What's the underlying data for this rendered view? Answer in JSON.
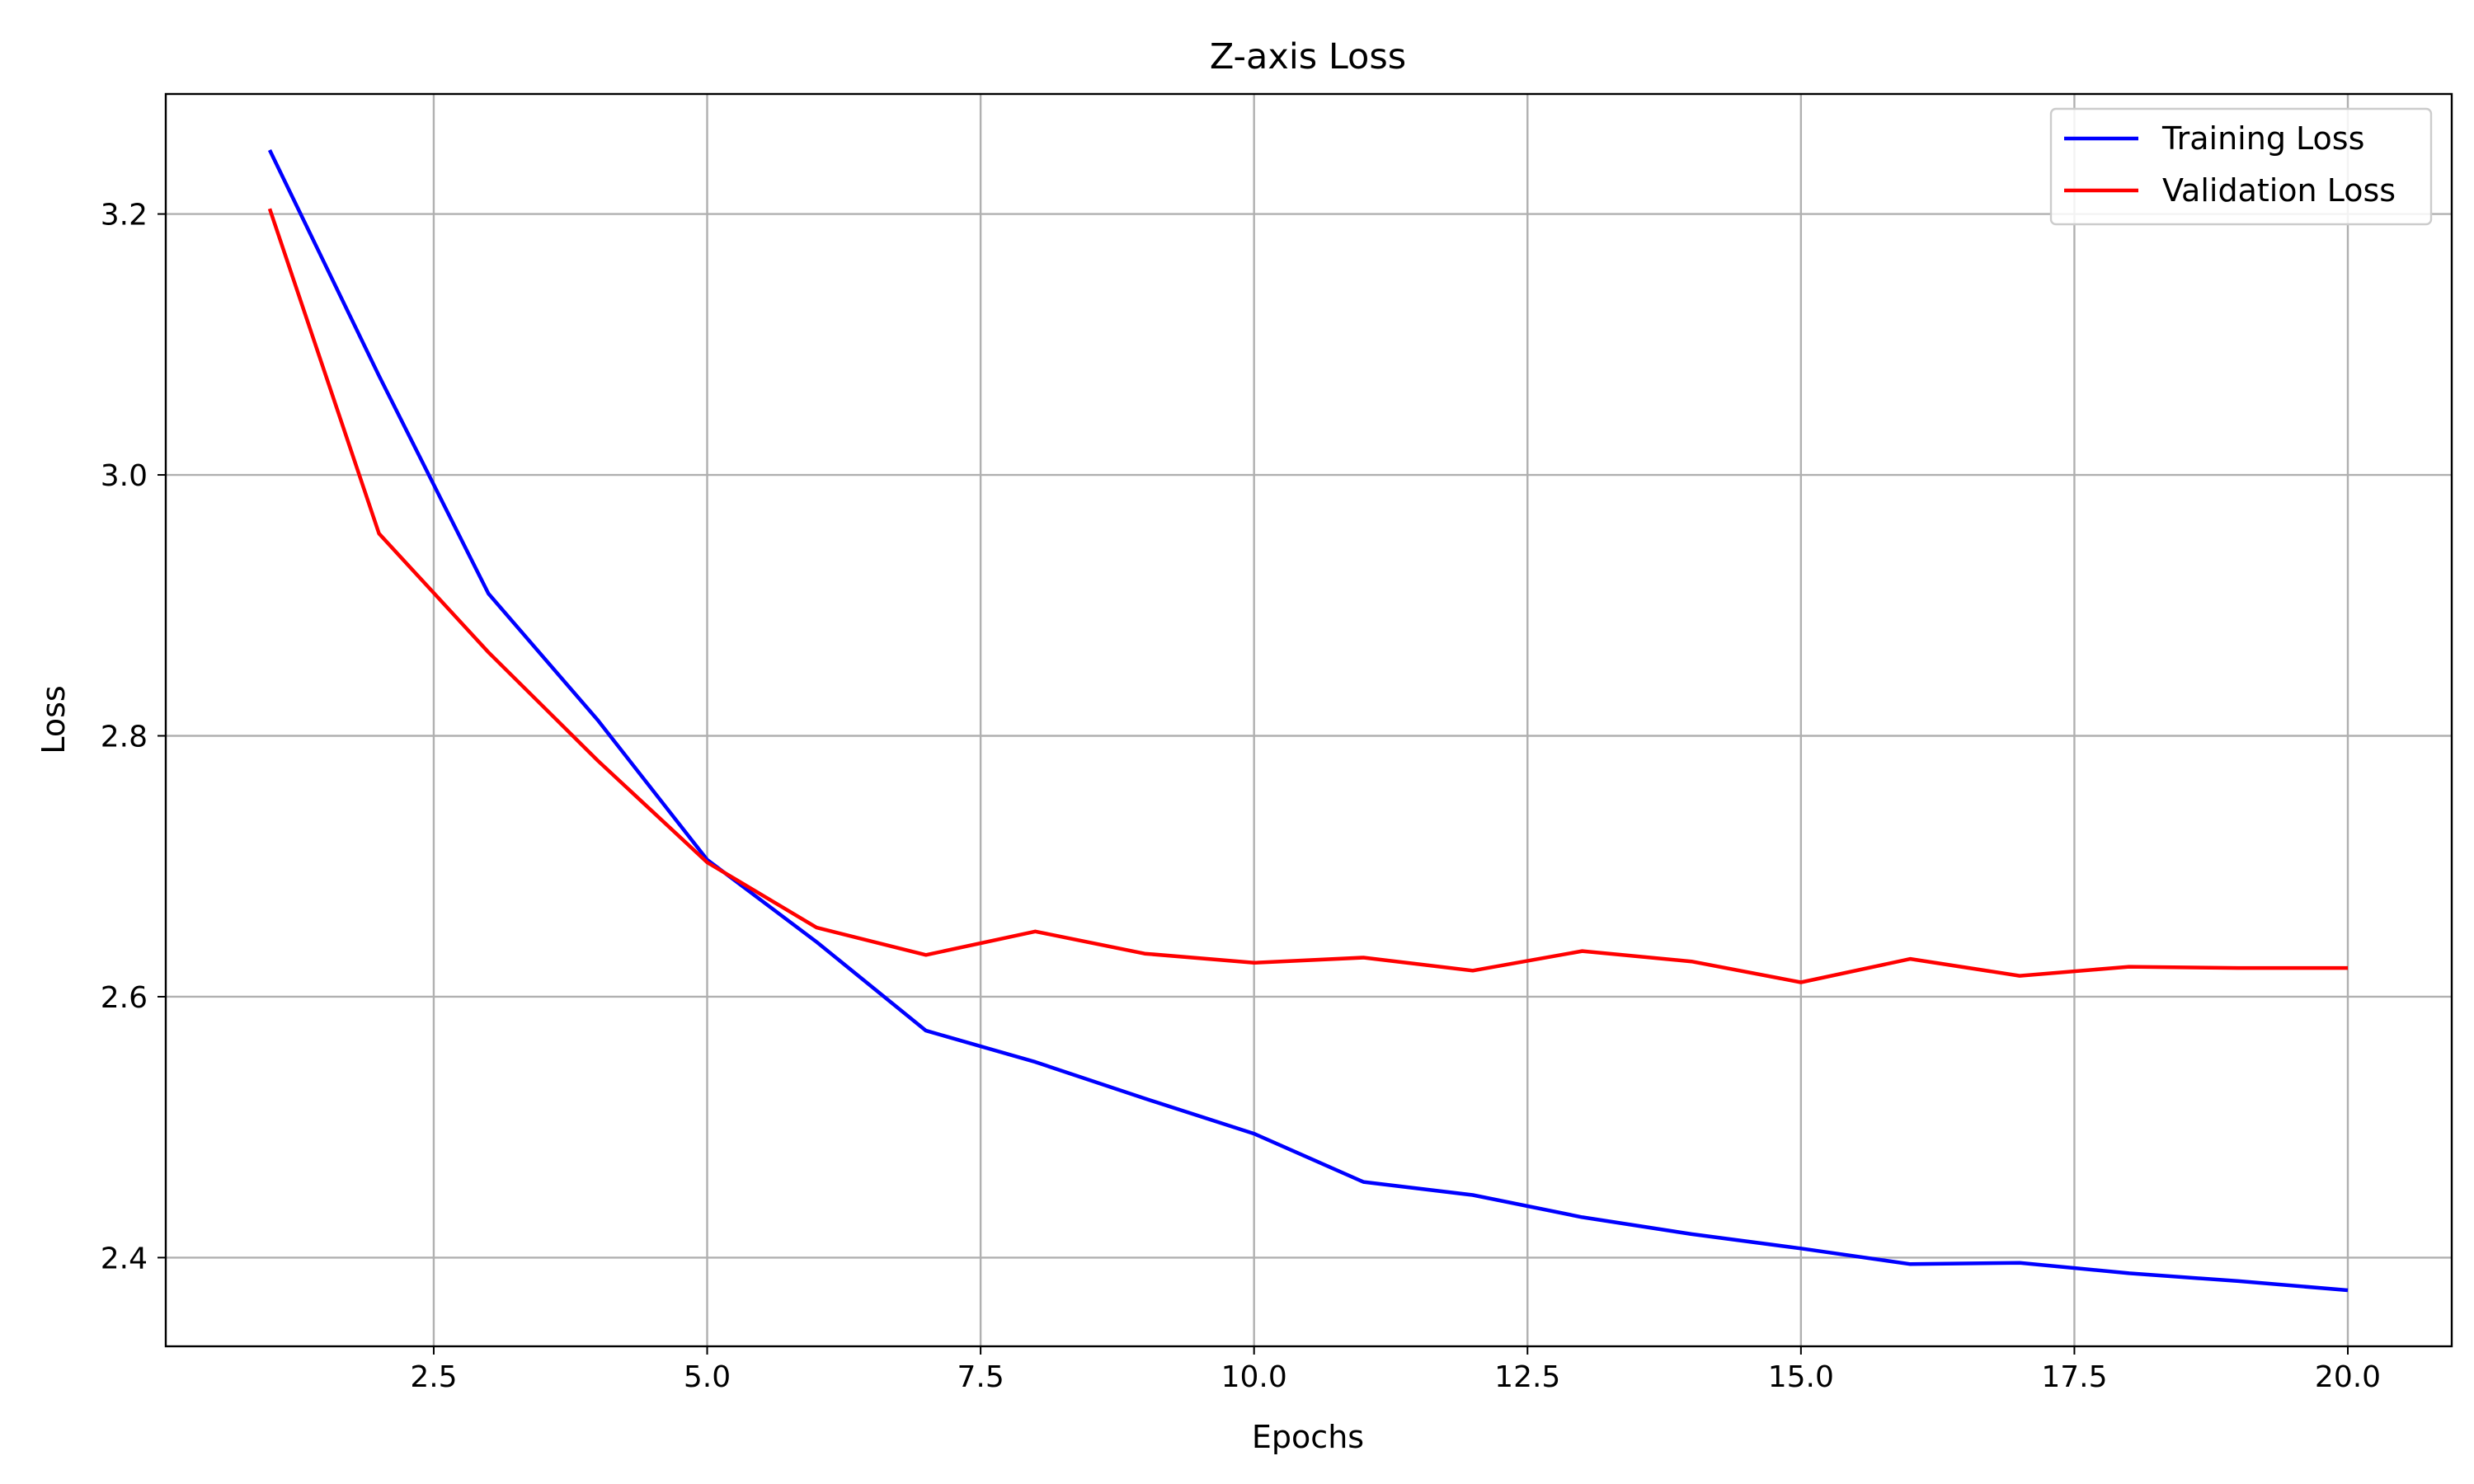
{
  "chart_data": {
    "type": "line",
    "title": "Z-axis Loss",
    "xlabel": "Epochs",
    "ylabel": "Loss",
    "xlim": [
      0.05,
      20.95
    ],
    "ylim": [
      2.332,
      3.292
    ],
    "xticks": [
      2.5,
      5.0,
      7.5,
      10.0,
      12.5,
      15.0,
      17.5,
      20.0
    ],
    "xtick_labels": [
      "2.5",
      "5.0",
      "7.5",
      "10.0",
      "12.5",
      "15.0",
      "17.5",
      "20.0"
    ],
    "yticks": [
      2.4,
      2.6,
      2.8,
      3.0,
      3.2
    ],
    "ytick_labels": [
      "2.4",
      "2.6",
      "2.8",
      "3.0",
      "3.2"
    ],
    "grid": true,
    "legend_position": "top-right",
    "x": [
      1,
      2,
      3,
      4,
      5,
      6,
      7,
      8,
      9,
      10,
      11,
      12,
      13,
      14,
      15,
      16,
      17,
      18,
      19,
      20
    ],
    "series": [
      {
        "name": "Training Loss",
        "color": "#0000ff",
        "values": [
          3.249,
          3.076,
          2.909,
          2.812,
          2.705,
          2.642,
          2.574,
          2.55,
          2.522,
          2.495,
          2.458,
          2.448,
          2.431,
          2.418,
          2.407,
          2.395,
          2.396,
          2.388,
          2.382,
          2.375
        ]
      },
      {
        "name": "Validation Loss",
        "color": "#ff0000",
        "values": [
          3.204,
          2.955,
          2.864,
          2.781,
          2.703,
          2.653,
          2.632,
          2.65,
          2.633,
          2.626,
          2.63,
          2.62,
          2.635,
          2.627,
          2.611,
          2.629,
          2.616,
          2.623,
          2.622,
          2.622
        ]
      }
    ]
  }
}
